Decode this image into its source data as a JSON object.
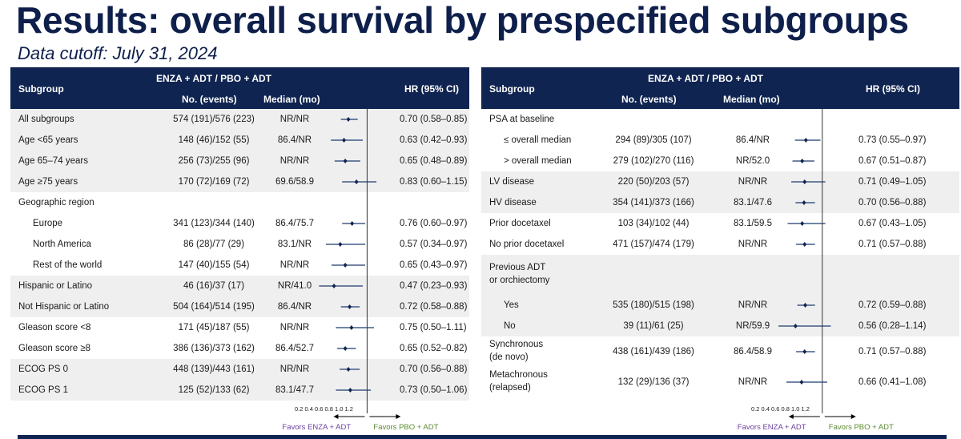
{
  "title": "Results: overall survival by prespecified subgroups",
  "subtitle": "Data cutoff: July 31, 2024",
  "header": {
    "subgroup": "Subgroup",
    "arms": "ENZA + ADT / PBO + ADT",
    "events": "No. (events)",
    "median": "Median (mo)",
    "hr": "HR (95% CI)"
  },
  "axis": {
    "ticks": "0.2 0.4 0.6 0.8 1.0 1.2",
    "favors_left": "Favors ENZA + ADT",
    "favors_right": "Favors PBO + ADT"
  },
  "chart_data": [
    {
      "type": "forest",
      "xlim": [
        0.2,
        1.2
      ],
      "reference_line": 1.0,
      "rows": [
        {
          "label": "All subgroups",
          "events": "574 (191)/576 (223)",
          "median": "NR/NR",
          "hr_text": "0.70 (0.58–0.85)",
          "hr": 0.7,
          "lo": 0.58,
          "hi": 0.85
        },
        {
          "label": "Age <65 years",
          "events": "148 (46)/152 (55)",
          "median": "86.4/NR",
          "hr_text": "0.63 (0.42–0.93)",
          "hr": 0.63,
          "lo": 0.42,
          "hi": 0.93
        },
        {
          "label": "Age 65–74 years",
          "events": "256 (73)/255 (96)",
          "median": "NR/NR",
          "hr_text": "0.65 (0.48–0.89)",
          "hr": 0.65,
          "lo": 0.48,
          "hi": 0.89
        },
        {
          "label": "Age ≥75 years",
          "events": "170 (72)/169 (72)",
          "median": "69.6/58.9",
          "hr_text": "0.83 (0.60–1.15)",
          "hr": 0.83,
          "lo": 0.6,
          "hi": 1.15
        },
        {
          "label": "Geographic region"
        },
        {
          "label": "Europe",
          "indent": 1,
          "events": "341 (123)/344 (140)",
          "median": "86.4/75.7",
          "hr_text": "0.76 (0.60–0.97)",
          "hr": 0.76,
          "lo": 0.6,
          "hi": 0.97
        },
        {
          "label": "North America",
          "indent": 1,
          "events": "86 (28)/77 (29)",
          "median": "83.1/NR",
          "hr_text": "0.57 (0.34–0.97)",
          "hr": 0.57,
          "lo": 0.34,
          "hi": 0.97
        },
        {
          "label": "Rest of the world",
          "indent": 1,
          "events": "147 (40)/155 (54)",
          "median": "NR/NR",
          "hr_text": "0.65 (0.43–0.97)",
          "hr": 0.65,
          "lo": 0.43,
          "hi": 0.97
        },
        {
          "label": "Hispanic or Latino",
          "events": "46 (16)/37 (17)",
          "median": "NR/41.0",
          "hr_text": "0.47 (0.23–0.93)",
          "hr": 0.47,
          "lo": 0.23,
          "hi": 0.93
        },
        {
          "label": "Not Hispanic or Latino",
          "events": "504 (164)/514 (195)",
          "median": "86.4/NR",
          "hr_text": "0.72 (0.58–0.88)",
          "hr": 0.72,
          "lo": 0.58,
          "hi": 0.88
        },
        {
          "label": "Gleason score <8",
          "events": "171 (45)/187 (55)",
          "median": "NR/NR",
          "hr_text": "0.75 (0.50–1.11)",
          "hr": 0.75,
          "lo": 0.5,
          "hi": 1.11
        },
        {
          "label": "Gleason score  ≥8",
          "events": "386 (136)/373 (162)",
          "median": "86.4/52.7",
          "hr_text": "0.65 (0.52–0.82)",
          "hr": 0.65,
          "lo": 0.52,
          "hi": 0.82
        },
        {
          "label": "ECOG PS 0",
          "events": "448 (139)/443 (161)",
          "median": "NR/NR",
          "hr_text": "0.70 (0.56–0.88)",
          "hr": 0.7,
          "lo": 0.56,
          "hi": 0.88
        },
        {
          "label": "ECOG PS 1",
          "events": "125 (52)/133 (62)",
          "median": "83.1/47.7",
          "hr_text": "0.73 (0.50–1.06)",
          "hr": 0.73,
          "lo": 0.5,
          "hi": 1.06
        }
      ]
    },
    {
      "type": "forest",
      "xlim": [
        0.2,
        1.2
      ],
      "reference_line": 1.0,
      "rows": [
        {
          "label": "PSA at baseline"
        },
        {
          "label": "≤ overall median",
          "indent": 1,
          "events": "294 (89)/305 (107)",
          "median": "86.4/NR",
          "hr_text": "0.73 (0.55–0.97)",
          "hr": 0.73,
          "lo": 0.55,
          "hi": 0.97
        },
        {
          "label": "> overall median",
          "indent": 1,
          "events": "279 (102)/270 (116)",
          "median": "NR/52.0",
          "hr_text": "0.67 (0.51–0.87)",
          "hr": 0.67,
          "lo": 0.51,
          "hi": 0.87
        },
        {
          "label": "LV disease",
          "events": "220 (50)/203 (57)",
          "median": "NR/NR",
          "hr_text": "0.71 (0.49–1.05)",
          "hr": 0.71,
          "lo": 0.49,
          "hi": 1.05
        },
        {
          "label": "HV disease",
          "events": "354 (141)/373 (166)",
          "median": "83.1/47.6",
          "hr_text": "0.70 (0.56–0.88)",
          "hr": 0.7,
          "lo": 0.56,
          "hi": 0.88
        },
        {
          "label": "Prior docetaxel",
          "events": "103 (34)/102 (44)",
          "median": "83.1/59.5",
          "hr_text": "0.67 (0.43–1.05)",
          "hr": 0.67,
          "lo": 0.43,
          "hi": 1.05
        },
        {
          "label": "No prior docetaxel",
          "events": "471 (157)/474 (179)",
          "median": "NR/NR",
          "hr_text": "0.71 (0.57–0.88)",
          "hr": 0.71,
          "lo": 0.57,
          "hi": 0.88
        },
        {
          "label": "Previous ADT",
          "label2": "or orchiectomy"
        },
        {
          "label": "Yes",
          "indent": 1,
          "events": "535 (180)/515 (198)",
          "median": "NR/NR",
          "hr_text": "0.72 (0.59–0.88)",
          "hr": 0.72,
          "lo": 0.59,
          "hi": 0.88
        },
        {
          "label": "No",
          "indent": 1,
          "events": "39 (11)/61 (25)",
          "median": "NR/59.9",
          "hr_text": "0.56 (0.28–1.14)",
          "hr": 0.56,
          "lo": 0.28,
          "hi": 1.14
        },
        {
          "label": "Synchronous",
          "label2": "(de novo)",
          "events": "438 (161)/439 (186)",
          "median": "86.4/58.9",
          "hr_text": "0.71 (0.57–0.88)",
          "hr": 0.71,
          "lo": 0.57,
          "hi": 0.88
        },
        {
          "label": "Metachronous",
          "label2": "(relapsed)",
          "events": "132 (29)/136 (37)",
          "median": "NR/NR",
          "hr_text": "0.66 (0.41–1.08)",
          "hr": 0.66,
          "lo": 0.41,
          "hi": 1.08
        }
      ]
    }
  ]
}
